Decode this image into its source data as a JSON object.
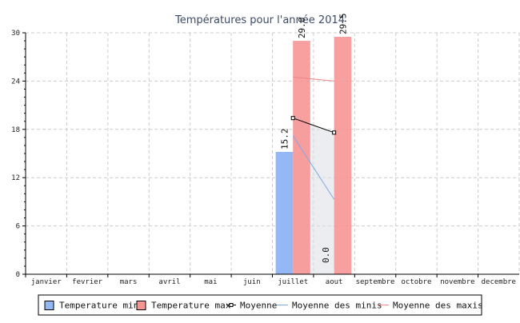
{
  "chart_data": {
    "type": "bar",
    "title": "Températures pour l'année 2014",
    "categories": [
      "janvier",
      "fevrier",
      "mars",
      "avril",
      "mai",
      "juin",
      "juillet",
      "aout",
      "septembre",
      "octobre",
      "novembre",
      "decembre"
    ],
    "ylim": [
      0,
      30
    ],
    "yticks": [
      0,
      6,
      12,
      18,
      24,
      30
    ],
    "grid": true,
    "legend_position": "bottom",
    "series": [
      {
        "name": "Temperature min",
        "kind": "bar",
        "color": "#94b8f5",
        "values": [
          null,
          null,
          null,
          null,
          null,
          null,
          15.2,
          0.0,
          null,
          null,
          null,
          null
        ]
      },
      {
        "name": "Temperature max",
        "kind": "bar",
        "color": "#f79595",
        "values": [
          null,
          null,
          null,
          null,
          null,
          null,
          29.0,
          29.5,
          null,
          null,
          null,
          null
        ]
      },
      {
        "name": "Moyenne",
        "kind": "line",
        "color": "#000000",
        "marker": "square",
        "values": [
          null,
          null,
          null,
          null,
          null,
          null,
          19.4,
          17.6,
          null,
          null,
          null,
          null
        ]
      },
      {
        "name": "Moyenne des minis",
        "kind": "line",
        "color": "#7fa8e6",
        "values": [
          null,
          null,
          null,
          null,
          null,
          null,
          17.2,
          9.3,
          null,
          null,
          null,
          null
        ]
      },
      {
        "name": "Moyenne des maxis",
        "kind": "line",
        "color": "#ee8a8a",
        "values": [
          null,
          null,
          null,
          null,
          null,
          null,
          24.5,
          24.0,
          null,
          null,
          null,
          null
        ]
      }
    ],
    "data_labels": [
      {
        "category": "juillet",
        "series": "Temperature min",
        "text": "15.2"
      },
      {
        "category": "juillet",
        "series": "Temperature max",
        "text": "29.0"
      },
      {
        "category": "aout",
        "series": "Temperature min",
        "text": "0.0"
      },
      {
        "category": "aout",
        "series": "Temperature max",
        "text": "29.5"
      }
    ]
  }
}
